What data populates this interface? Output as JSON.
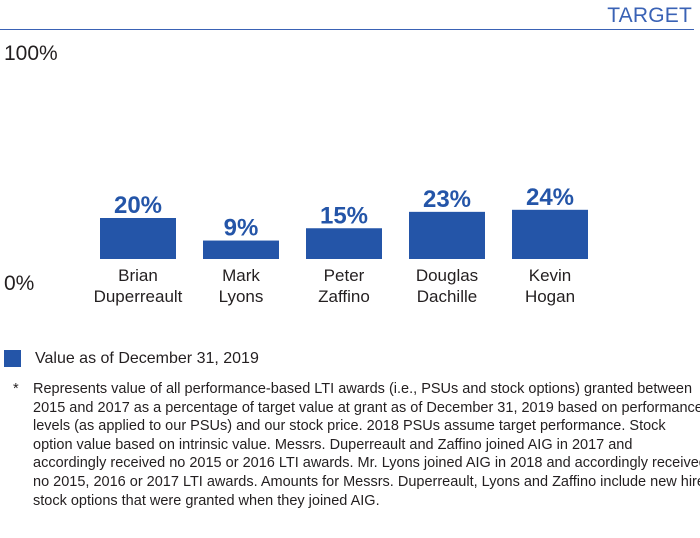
{
  "header": {
    "target_label": "TARGET"
  },
  "colors": {
    "bar": "#2455a8",
    "accent": "#3a62b5",
    "text": "#231f20"
  },
  "chart_data": {
    "type": "bar",
    "y_axis": {
      "top_label": "100%",
      "bottom_label": "0%"
    },
    "ylim": [
      0,
      100
    ],
    "categories": [
      [
        "Brian",
        "Duperreault"
      ],
      [
        "Mark",
        "Lyons"
      ],
      [
        "Peter",
        "Zaffino"
      ],
      [
        "Douglas",
        "Dachille"
      ],
      [
        "Kevin",
        "Hogan"
      ]
    ],
    "values": [
      20,
      9,
      15,
      23,
      24
    ],
    "data_labels": [
      "20%",
      "9%",
      "15%",
      "23%",
      "24%"
    ],
    "series": [
      {
        "name": "Value as of December 31, 2019",
        "values": [
          20,
          9,
          15,
          23,
          24
        ]
      }
    ]
  },
  "legend": {
    "label": "Value as of December 31, 2019"
  },
  "footnote": {
    "marker": "*",
    "text": "Represents value of all performance-based LTI awards (i.e., PSUs and stock options) granted between 2015 and 2017 as a percentage of target value at grant as of December 31, 2019 based on performance levels (as applied to our PSUs) and our stock price. 2018 PSUs assume target performance. Stock option value based on intrinsic value. Messrs. Duperreault and Zaffino joined AIG in 2017 and accordingly received no 2015 or 2016 LTI awards. Mr. Lyons joined AIG in 2018 and accordingly received no 2015, 2016 or 2017 LTI awards. Amounts for Messrs. Duperreault, Lyons and Zaffino include new hire stock options that were granted when they joined AIG."
  }
}
